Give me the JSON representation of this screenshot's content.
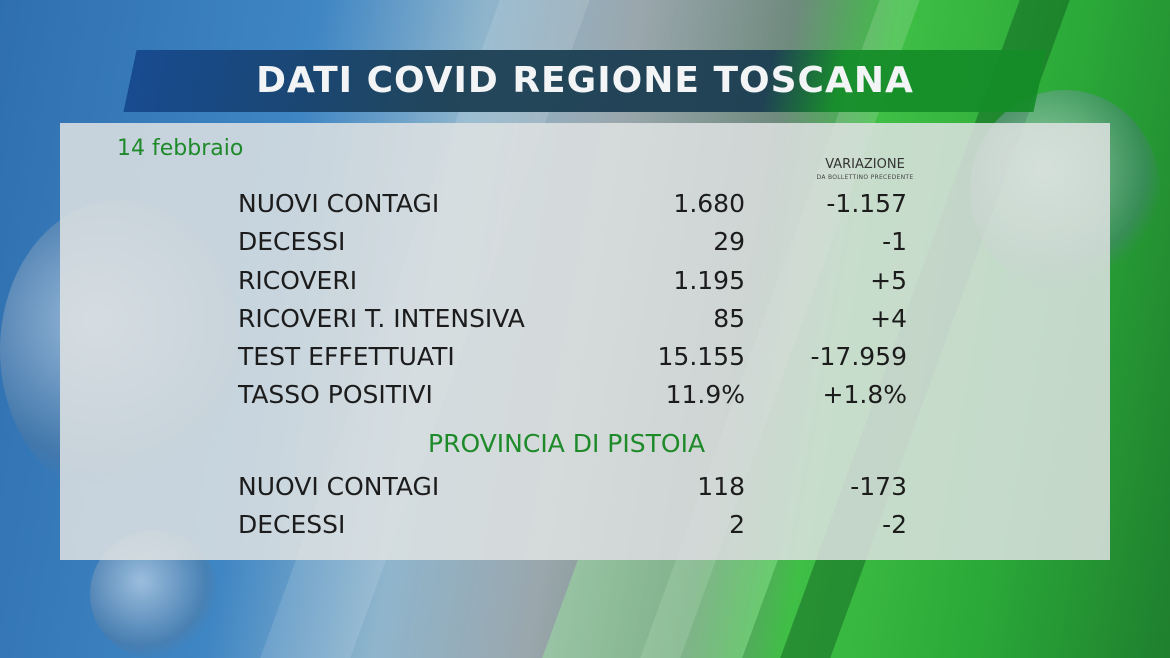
{
  "title": "DATI COVID REGIONE TOSCANA",
  "date": "14 febbraio",
  "variation_header": "VARIAZIONE",
  "variation_subheader": "DA BOLLETTINO PRECEDENTE",
  "colors": {
    "accent_green": "#1f8a2a",
    "banner_dark": "#193c50",
    "banner_green": "#148c28",
    "banner_blue": "#14468c"
  },
  "region_rows": [
    {
      "label": "NUOVI CONTAGI",
      "value": "1.680",
      "change": "-1.157"
    },
    {
      "label": "DECESSI",
      "value": "29",
      "change": "-1"
    },
    {
      "label": "RICOVERI",
      "value": "1.195",
      "change": "+5"
    },
    {
      "label": "RICOVERI T. INTENSIVA",
      "value": "85",
      "change": "+4"
    },
    {
      "label": "TEST EFFETTUATI",
      "value": "15.155",
      "change": "-17.959"
    },
    {
      "label": "TASSO POSITIVI",
      "value": "11.9%",
      "change": "+1.8%"
    }
  ],
  "province": {
    "title": "PROVINCIA DI PISTOIA",
    "rows": [
      {
        "label": "NUOVI CONTAGI",
        "value": "118",
        "change": "-173"
      },
      {
        "label": "DECESSI",
        "value": "2",
        "change": "-2"
      }
    ]
  }
}
